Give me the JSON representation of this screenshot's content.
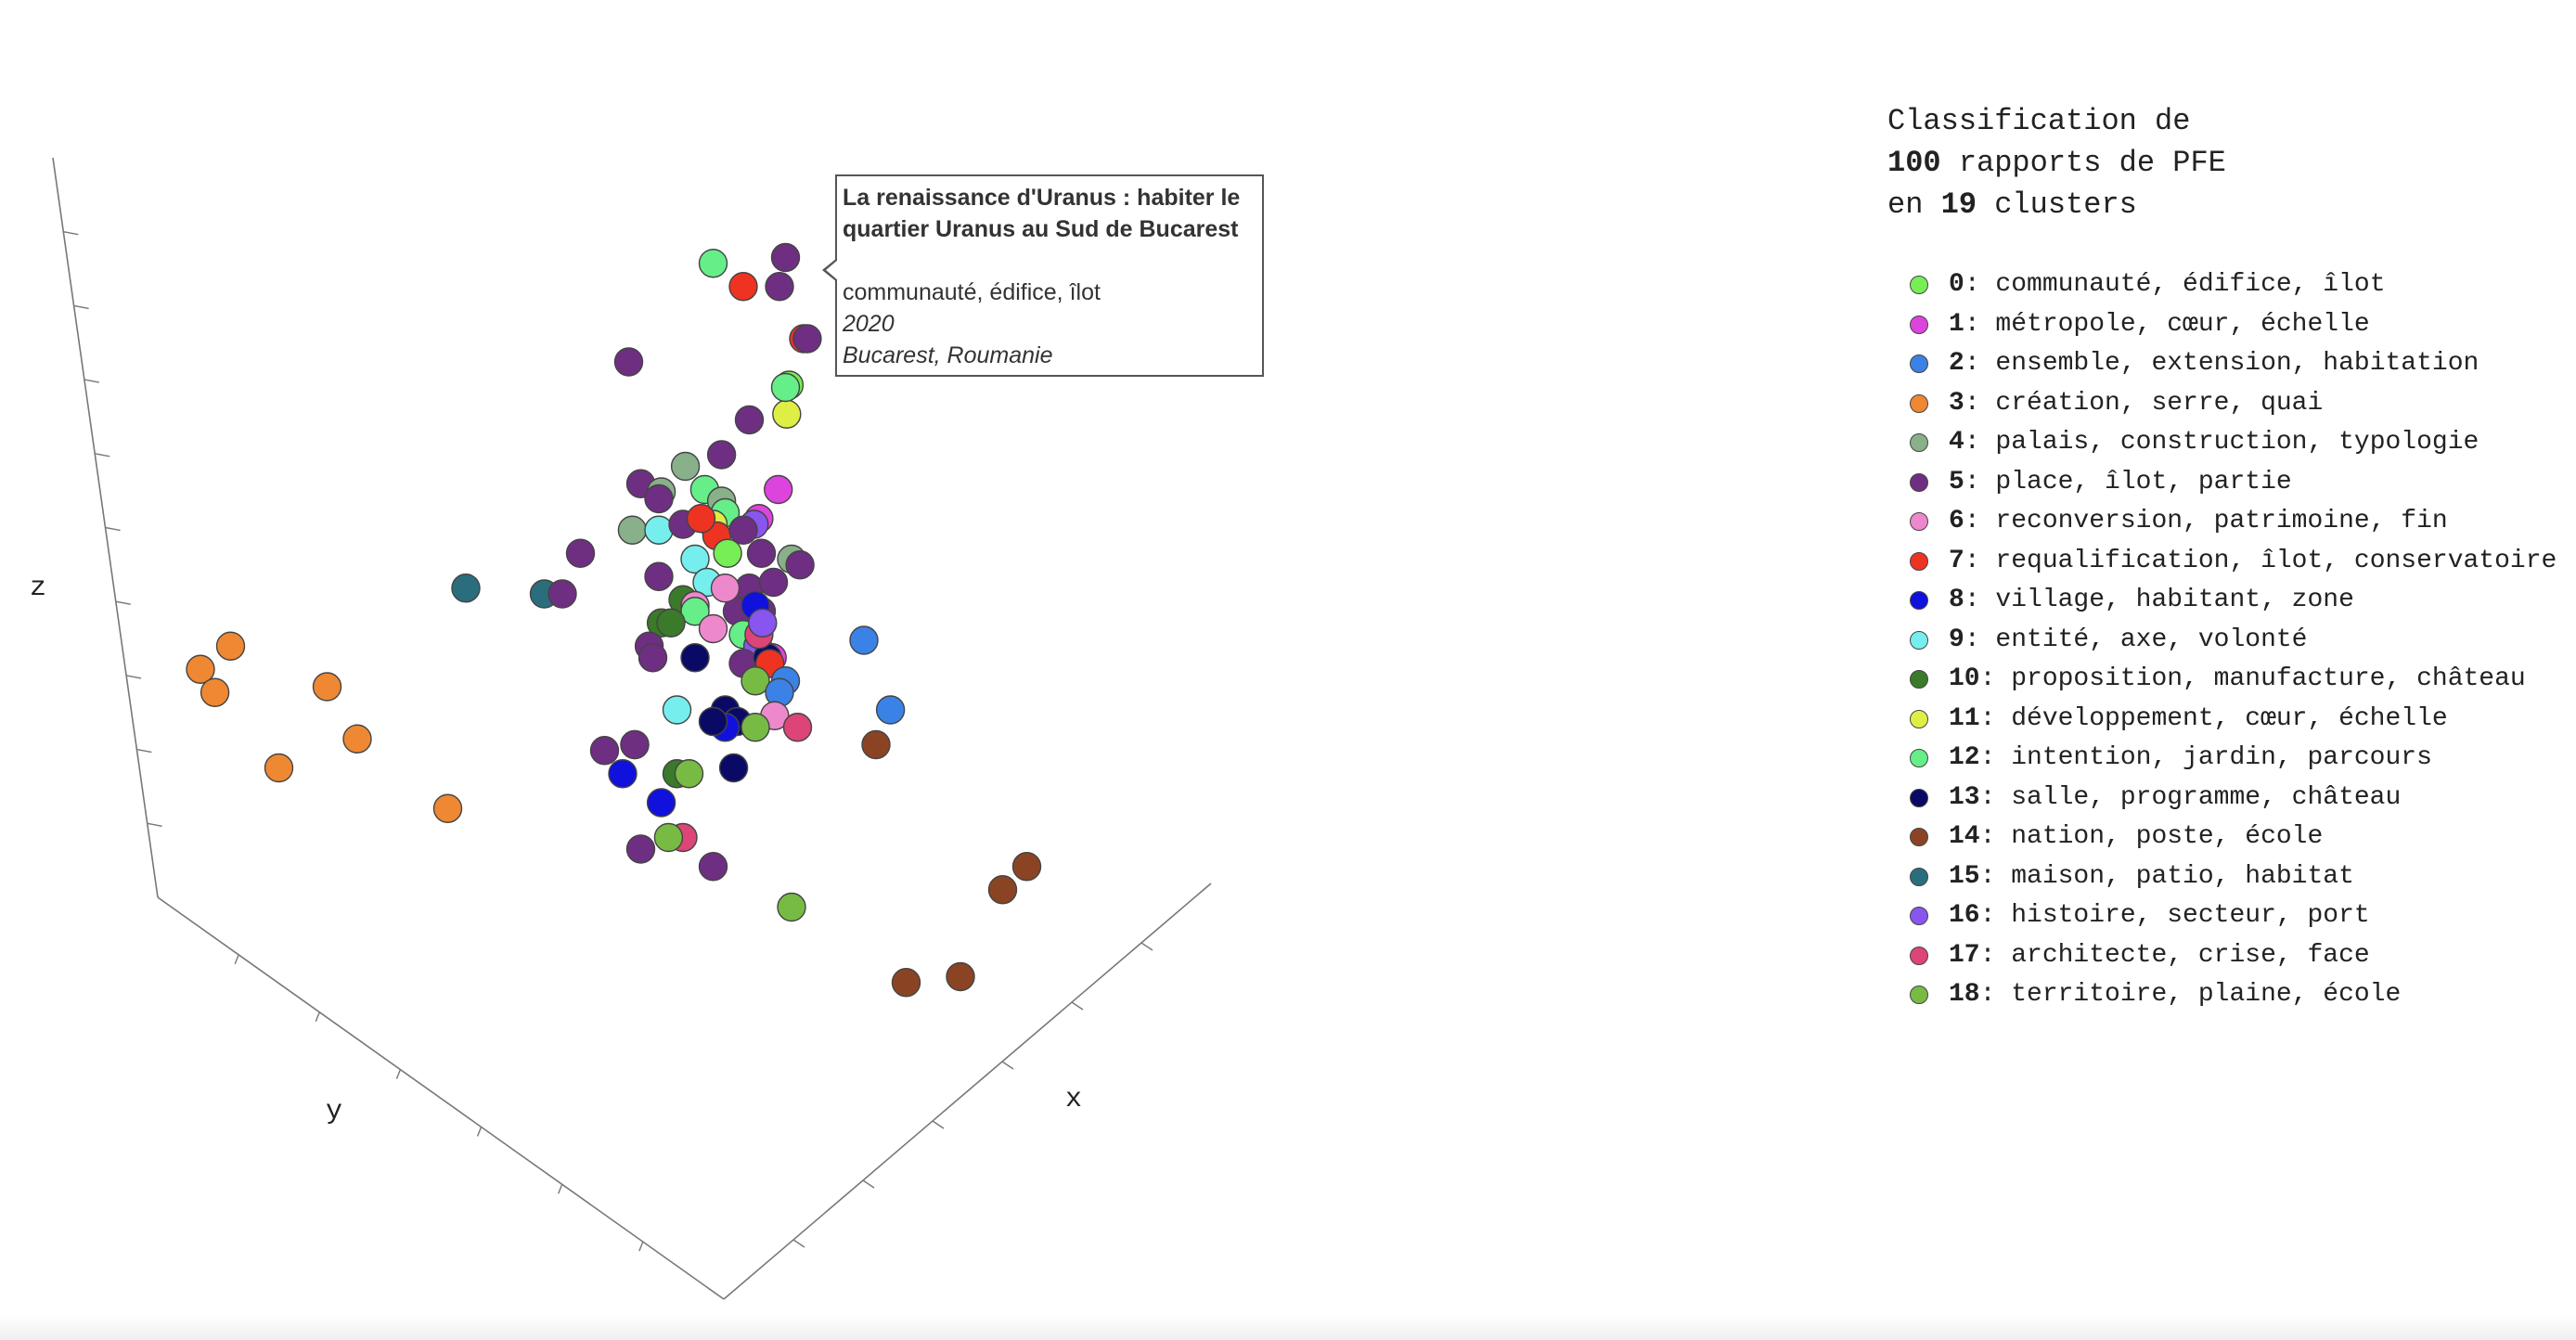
{
  "info": {
    "line1": "Classification de",
    "count": "100",
    "line2_rest": " rapports de PFE",
    "line3_prefix": "en ",
    "clusters": "19",
    "line3_rest": " clusters"
  },
  "tooltip": {
    "title": "La renaissance d'Uranus  : habiter le quartier Uranus au Sud de Bucarest",
    "keywords": "communauté, édifice, îlot",
    "year": "2020",
    "place": "Bucarest, Roumanie"
  },
  "legend": [
    {
      "num": "0",
      "label": "communauté, édifice, îlot",
      "color": "#77ee55"
    },
    {
      "num": "1",
      "label": "métropole, cœur, échelle",
      "color": "#dd44dd"
    },
    {
      "num": "2",
      "label": "ensemble, extension, habitation",
      "color": "#3b82e6"
    },
    {
      "num": "3",
      "label": "création, serre, quai",
      "color": "#ee8833"
    },
    {
      "num": "4",
      "label": "palais, construction, typologie",
      "color": "#88b08a"
    },
    {
      "num": "5",
      "label": "place, îlot, partie",
      "color": "#6e2f82"
    },
    {
      "num": "6",
      "label": "reconversion, patrimoine, fin",
      "color": "#ee88cc"
    },
    {
      "num": "7",
      "label": "requalification, îlot, conservatoire",
      "color": "#ee3322"
    },
    {
      "num": "8",
      "label": "village, habitant, zone",
      "color": "#1111dd"
    },
    {
      "num": "9",
      "label": "entité, axe, volonté",
      "color": "#77eeee"
    },
    {
      "num": "10",
      "label": "proposition, manufacture, château",
      "color": "#3a7a2a"
    },
    {
      "num": "11",
      "label": "développement, cœur, échelle",
      "color": "#dfee44"
    },
    {
      "num": "12",
      "label": "intention, jardin, parcours",
      "color": "#66ee88"
    },
    {
      "num": "13",
      "label": "salle, programme, château",
      "color": "#0a0a66"
    },
    {
      "num": "14",
      "label": "nation, poste, école",
      "color": "#8a4424"
    },
    {
      "num": "15",
      "label": "maison, patio, habitat",
      "color": "#2a6e7e"
    },
    {
      "num": "16",
      "label": "histoire, secteur, port",
      "color": "#8855ee"
    },
    {
      "num": "17",
      "label": "architecte, crise, face",
      "color": "#dd4477"
    },
    {
      "num": "18",
      "label": "territoire, plaine, école",
      "color": "#77bb44"
    }
  ],
  "chart_data": {
    "type": "scatter",
    "title": "",
    "xlabel": "x",
    "ylabel": "y",
    "zlabel": "z",
    "points": [
      {
        "c": 7,
        "x": 0.7,
        "y": 0.6
      },
      {
        "c": 5,
        "x": 0.73,
        "y": 0.6
      },
      {
        "c": 12,
        "x": -0.05,
        "y": 1.25
      },
      {
        "c": 7,
        "x": 0.2,
        "y": 1.05
      },
      {
        "c": 5,
        "x": 0.5,
        "y": 1.05
      },
      {
        "c": 5,
        "x": -0.75,
        "y": 0.4
      },
      {
        "c": 0,
        "x": 0.58,
        "y": 0.2
      },
      {
        "c": 5,
        "x": 0.25,
        "y": -0.1
      },
      {
        "c": 11,
        "x": 0.56,
        "y": -0.05
      },
      {
        "c": 5,
        "x": 0.02,
        "y": -0.4
      },
      {
        "c": 4,
        "x": -0.28,
        "y": -0.5
      },
      {
        "c": 5,
        "x": -0.65,
        "y": -0.65
      },
      {
        "c": 4,
        "x": -0.48,
        "y": -0.72
      },
      {
        "c": 12,
        "x": -0.12,
        "y": -0.7
      },
      {
        "c": 4,
        "x": 0.02,
        "y": -0.8
      },
      {
        "c": 1,
        "x": 0.49,
        "y": -0.7
      },
      {
        "c": 5,
        "x": -0.5,
        "y": -0.78
      },
      {
        "c": 1,
        "x": 0.33,
        "y": -0.95
      },
      {
        "c": 16,
        "x": 0.29,
        "y": -1.0
      },
      {
        "c": 12,
        "x": 0.05,
        "y": -0.9
      },
      {
        "c": 11,
        "x": -0.05,
        "y": -1.0
      },
      {
        "c": 4,
        "x": -0.72,
        "y": -1.05
      },
      {
        "c": 9,
        "x": -0.5,
        "y": -1.05
      },
      {
        "c": 5,
        "x": -0.3,
        "y": -1.0
      },
      {
        "c": 7,
        "x": -0.02,
        "y": -1.1
      },
      {
        "c": 5,
        "x": 0.2,
        "y": -1.05
      },
      {
        "c": 5,
        "x": -1.15,
        "y": -1.25
      },
      {
        "c": 4,
        "x": 0.6,
        "y": -1.3
      },
      {
        "c": 9,
        "x": -0.2,
        "y": -1.3
      },
      {
        "c": 0,
        "x": 0.07,
        "y": -1.25
      },
      {
        "c": 5,
        "x": 0.35,
        "y": -1.25
      },
      {
        "c": 5,
        "x": 0.67,
        "y": -1.35
      },
      {
        "c": 15,
        "x": -2.1,
        "y": -1.55
      },
      {
        "c": 15,
        "x": -1.45,
        "y": -1.6
      },
      {
        "c": 5,
        "x": -1.3,
        "y": -1.6
      },
      {
        "c": 5,
        "x": -0.5,
        "y": -1.45
      },
      {
        "c": 9,
        "x": -0.1,
        "y": -1.5
      },
      {
        "c": 5,
        "x": 0.25,
        "y": -1.55
      },
      {
        "c": 5,
        "x": 0.45,
        "y": -1.5
      },
      {
        "c": 10,
        "x": -0.3,
        "y": -1.65
      },
      {
        "c": 6,
        "x": -0.2,
        "y": -1.7
      },
      {
        "c": 12,
        "x": -0.2,
        "y": -1.75
      },
      {
        "c": 5,
        "x": 0.15,
        "y": -1.75
      },
      {
        "c": 5,
        "x": 0.35,
        "y": -1.75
      },
      {
        "c": 10,
        "x": -0.48,
        "y": -1.85
      },
      {
        "c": 10,
        "x": -0.4,
        "y": -1.85
      },
      {
        "c": 6,
        "x": -0.05,
        "y": -1.9
      },
      {
        "c": 12,
        "x": 0.2,
        "y": -1.95
      },
      {
        "c": 2,
        "x": 1.2,
        "y": -2.0
      },
      {
        "c": 5,
        "x": -0.58,
        "y": -2.05
      },
      {
        "c": 5,
        "x": -0.55,
        "y": -2.15
      },
      {
        "c": 13,
        "x": -0.2,
        "y": -2.15
      },
      {
        "c": 1,
        "x": 0.44,
        "y": -2.15
      },
      {
        "c": 16,
        "x": 0.32,
        "y": -2.05
      },
      {
        "c": 5,
        "x": 0.2,
        "y": -2.2
      },
      {
        "c": 13,
        "x": 0.4,
        "y": -2.15
      },
      {
        "c": 7,
        "x": 0.42,
        "y": -2.2
      },
      {
        "c": 18,
        "x": 0.3,
        "y": -2.35
      },
      {
        "c": 2,
        "x": 0.55,
        "y": -2.35
      },
      {
        "c": 2,
        "x": 0.5,
        "y": -2.45
      },
      {
        "c": 3,
        "x": -4.05,
        "y": -2.05
      },
      {
        "c": 3,
        "x": -4.3,
        "y": -2.25
      },
      {
        "c": 3,
        "x": -4.18,
        "y": -2.45
      },
      {
        "c": 3,
        "x": -3.25,
        "y": -2.4
      },
      {
        "c": 9,
        "x": -0.35,
        "y": -2.6
      },
      {
        "c": 13,
        "x": 0.05,
        "y": -2.6
      },
      {
        "c": 13,
        "x": 0.15,
        "y": -2.7
      },
      {
        "c": 6,
        "x": 0.46,
        "y": -2.65
      },
      {
        "c": 17,
        "x": 0.65,
        "y": -2.75
      },
      {
        "c": 2,
        "x": 1.42,
        "y": -2.6
      },
      {
        "c": 3,
        "x": -3.0,
        "y": -2.85
      },
      {
        "c": 16,
        "x": -0.7,
        "y": -2.9
      },
      {
        "c": 5,
        "x": -0.95,
        "y": -2.95
      },
      {
        "c": 5,
        "x": -0.7,
        "y": -2.9
      },
      {
        "c": 8,
        "x": 0.05,
        "y": -2.75
      },
      {
        "c": 13,
        "x": -0.05,
        "y": -2.7
      },
      {
        "c": 18,
        "x": 0.3,
        "y": -2.75
      },
      {
        "c": 14,
        "x": 1.3,
        "y": -2.9
      },
      {
        "c": 3,
        "x": -3.65,
        "y": -3.1
      },
      {
        "c": 8,
        "x": -0.8,
        "y": -3.15
      },
      {
        "c": 10,
        "x": -0.35,
        "y": -3.15
      },
      {
        "c": 18,
        "x": -0.25,
        "y": -3.15
      },
      {
        "c": 13,
        "x": 0.12,
        "y": -3.1
      },
      {
        "c": 3,
        "x": -2.25,
        "y": -3.45
      },
      {
        "c": 8,
        "x": -0.48,
        "y": -3.4
      },
      {
        "c": 17,
        "x": -0.3,
        "y": -3.7
      },
      {
        "c": 18,
        "x": -0.42,
        "y": -3.7
      },
      {
        "c": 5,
        "x": -0.65,
        "y": -3.8
      },
      {
        "c": 5,
        "x": -0.05,
        "y": -3.95
      },
      {
        "c": 18,
        "x": 0.6,
        "y": -4.3
      },
      {
        "c": 14,
        "x": 2.55,
        "y": -3.95
      },
      {
        "c": 14,
        "x": 2.35,
        "y": -4.15
      },
      {
        "c": 14,
        "x": 2.0,
        "y": -4.9
      },
      {
        "c": 14,
        "x": 1.55,
        "y": -4.95
      },
      {
        "c": 5,
        "x": 0.55,
        "y": 1.3
      },
      {
        "c": 7,
        "x": -0.15,
        "y": -0.95
      },
      {
        "c": 8,
        "x": 0.3,
        "y": -1.7
      },
      {
        "c": 6,
        "x": 0.05,
        "y": -1.55
      },
      {
        "c": 17,
        "x": 0.33,
        "y": -1.95
      },
      {
        "c": 16,
        "x": 0.36,
        "y": -1.85
      },
      {
        "c": 12,
        "x": 0.55,
        "y": 0.18
      }
    ]
  }
}
